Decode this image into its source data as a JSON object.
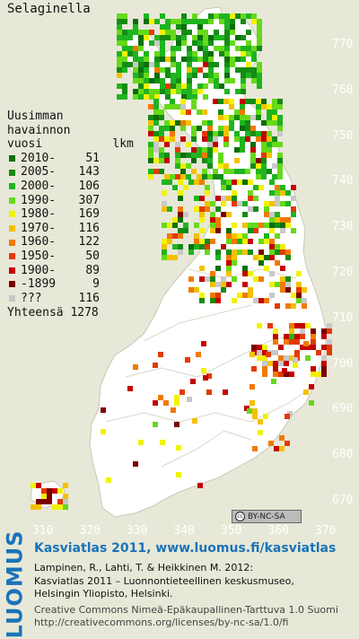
{
  "title": "Selaginella",
  "legend": {
    "header": [
      "Uusimman",
      "havainnon",
      "vuosi          lkm"
    ],
    "rows": [
      {
        "label": "2010-",
        "count": "51",
        "color": "#0a6e0a"
      },
      {
        "label": "2005-",
        "count": "143",
        "color": "#148c14"
      },
      {
        "label": "2000-",
        "count": "106",
        "color": "#1fb41f"
      },
      {
        "label": "1990-",
        "count": "307",
        "color": "#66d91a"
      },
      {
        "label": "1980-",
        "count": "169",
        "color": "#f2f200"
      },
      {
        "label": "1970-",
        "count": "116",
        "color": "#f2c200"
      },
      {
        "label": "1960-",
        "count": "122",
        "color": "#f07a00"
      },
      {
        "label": "1950-",
        "count": "50",
        "color": "#e23a00"
      },
      {
        "label": "1900-",
        "count": "89",
        "color": "#c40000"
      },
      {
        "label": "-1899",
        "count": "9",
        "color": "#7a0000"
      },
      {
        "label": "???",
        "count": "116",
        "color": "#c8c8c8"
      }
    ],
    "total_label": "Yhteensä",
    "total": "1278"
  },
  "grid_labels": {
    "northing": [
      "770",
      "760",
      "750",
      "740",
      "730",
      "720",
      "710",
      "700",
      "690",
      "680",
      "670"
    ],
    "easting": [
      "310",
      "320",
      "330",
      "340",
      "350",
      "360",
      "370"
    ]
  },
  "license_badge": "BY-NC-SA",
  "footer": {
    "logo": "LUOMUS",
    "title": "Kasviatlas 2011, www.luomus.fi/kasviatlas",
    "citation_1": "Lampinen, R., Lahti, T. & Heikkinen M. 2012:",
    "citation_2": "Kasviatlas 2011 – Luonnontieteellinen keskusmuseo,",
    "citation_3": "Helsingin Yliopisto, Helsinki.",
    "license_1": "Creative Commons Nimeä-Epäkaupallinen-Tarttuva 1.0 Suomi",
    "license_2": "http://creativecommons.org/licenses/by-nc-sa/1.0/fi"
  },
  "colors": {
    "background": "#e8e8d8",
    "land": "#ffffff",
    "border_lines": "#c8c8b8",
    "accent": "#1a73b8"
  }
}
